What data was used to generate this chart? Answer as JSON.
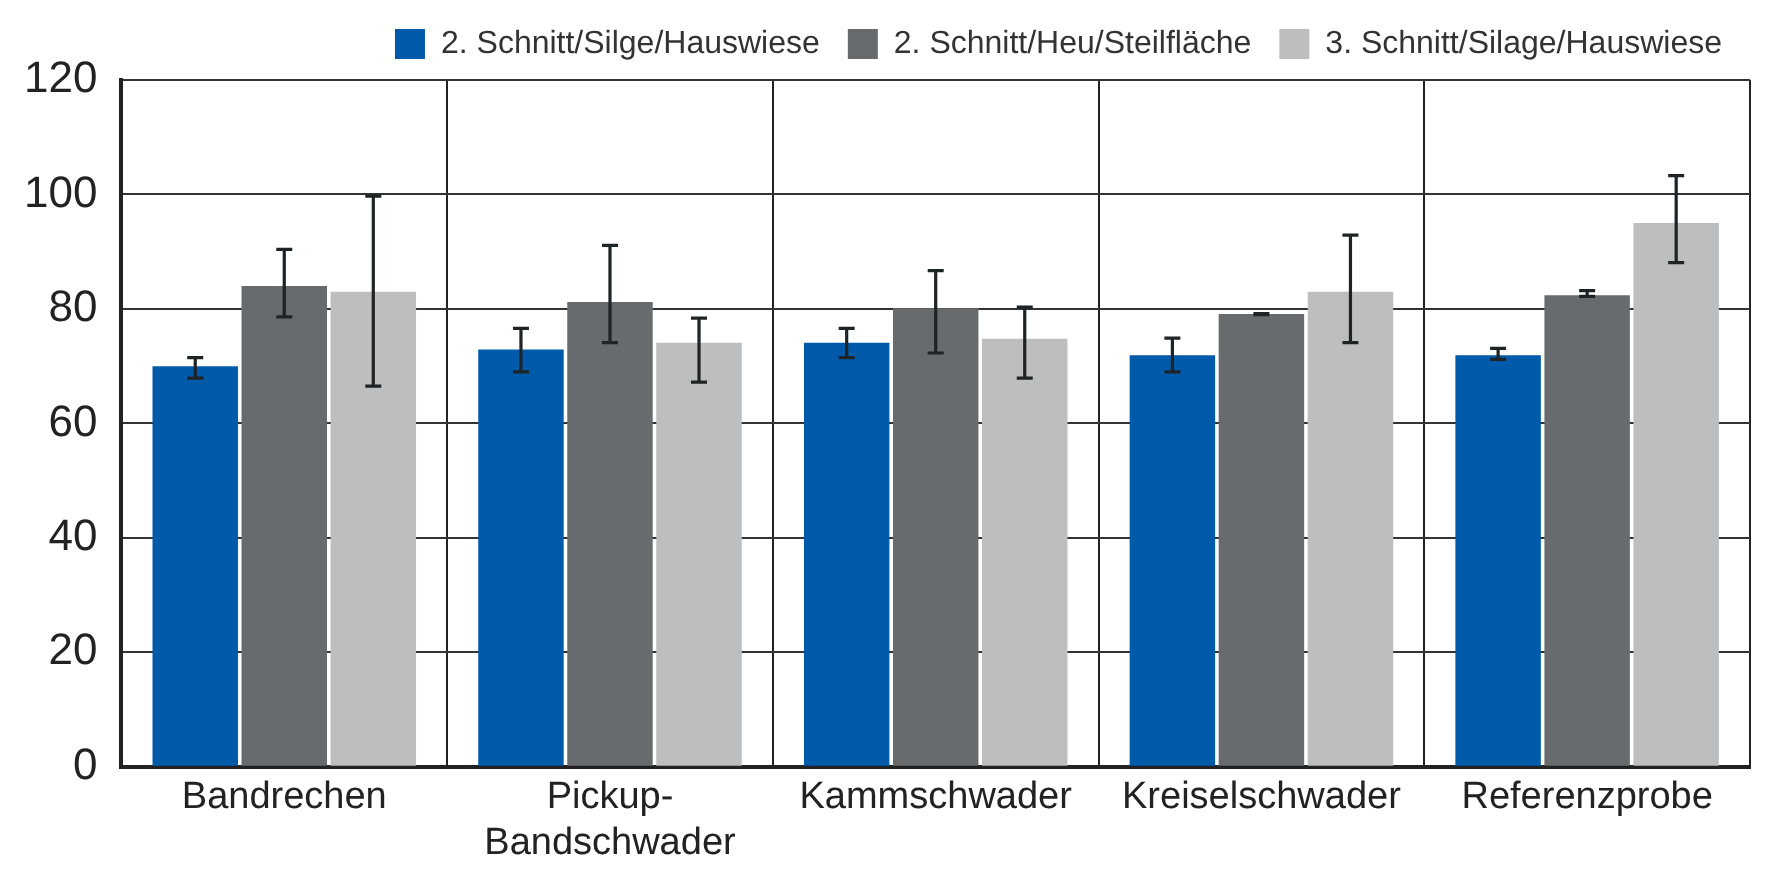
{
  "chart_data": {
    "type": "bar",
    "categories": [
      "Bandrechen",
      "Pickup-Bandschwader",
      "Kammschwader",
      "Kreiselschwader",
      "Referenzprobe"
    ],
    "series": [
      {
        "name": "2. Schnitt/Silge/Hauswiese",
        "color": "#005aaa",
        "values": [
          70.0,
          72.9,
          74.1,
          71.9,
          71.9
        ],
        "errors": [
          [
            67.9,
            71.5
          ],
          [
            69.0,
            76.6
          ],
          [
            71.5,
            76.6
          ],
          [
            69.0,
            74.9
          ],
          [
            71.2,
            73.1
          ]
        ]
      },
      {
        "name": "2. Schnitt/Heu/Steilfläche",
        "color": "#686b6e",
        "values": [
          84.0,
          81.2,
          80.1,
          79.1,
          82.4
        ],
        "errors": [
          [
            78.6,
            90.4
          ],
          [
            74.1,
            91.1
          ],
          [
            72.3,
            86.7
          ],
          [
            79.0,
            79.2
          ],
          [
            82.2,
            83.2
          ]
        ]
      },
      {
        "name": "3. Schnitt/Silage/Hauswiese",
        "color": "#bdbec0",
        "values": [
          83.0,
          74.1,
          74.8,
          83.0,
          95.0
        ],
        "errors": [
          [
            66.5,
            99.7
          ],
          [
            67.2,
            78.4
          ],
          [
            67.9,
            80.3
          ],
          [
            74.1,
            92.9
          ],
          [
            88.1,
            103.3
          ]
        ]
      }
    ],
    "ylim": [
      0,
      120
    ],
    "yticks": [
      0,
      20,
      40,
      60,
      80,
      100,
      120
    ],
    "grid": true,
    "legend": "top right"
  }
}
